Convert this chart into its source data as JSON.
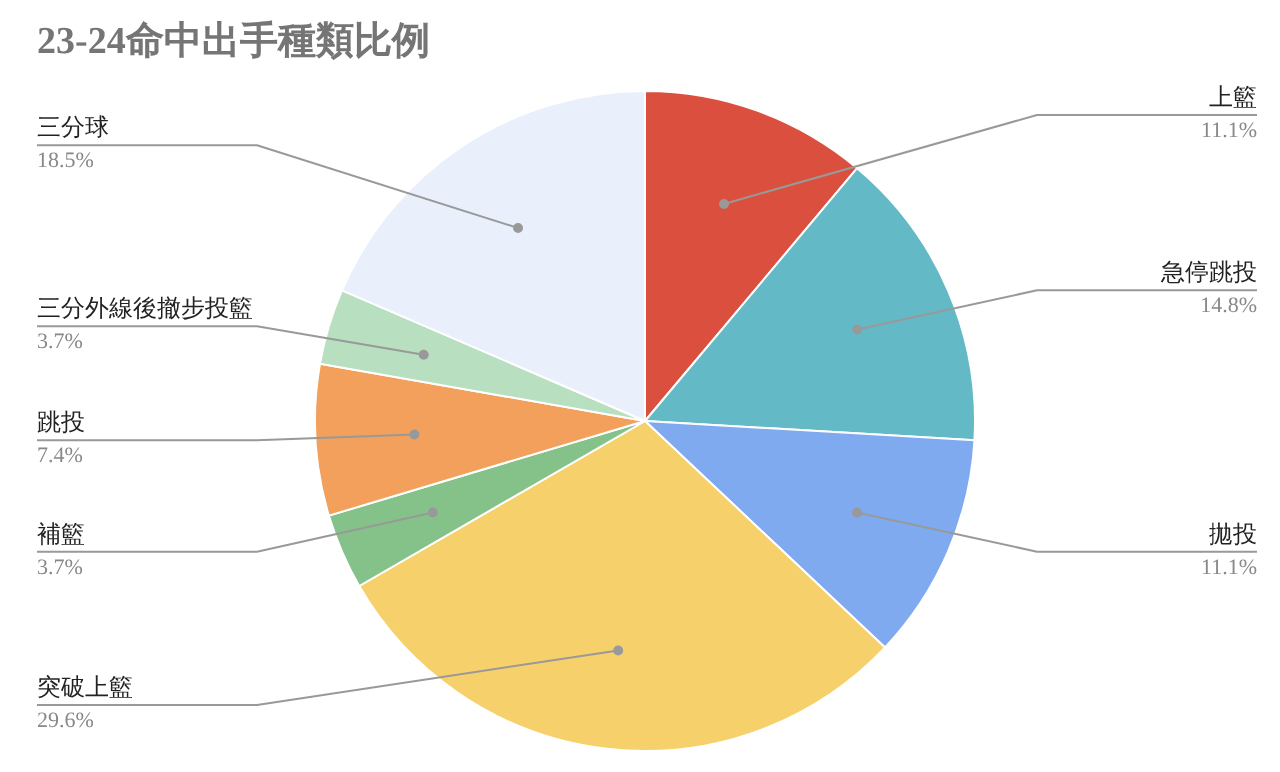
{
  "chart_data": {
    "type": "pie",
    "title": "23-24命中出手種類比例",
    "categories": [
      "上籃",
      "急停跳投",
      "拋投",
      "突破上籃",
      "補籃",
      "跳投",
      "三分外線後撤步投籃",
      "三分球"
    ],
    "values": [
      11.1,
      14.8,
      11.1,
      29.6,
      3.7,
      7.4,
      3.7,
      18.5
    ],
    "value_labels": [
      "11.1%",
      "14.8%",
      "11.1%",
      "29.6%",
      "3.7%",
      "7.4%",
      "3.7%",
      "18.5%"
    ],
    "colors": [
      "#db4f3f",
      "#63bac6",
      "#7faaf0",
      "#f6d06a",
      "#84c28a",
      "#f2a05c",
      "#b7dfc0",
      "#eaf0fb"
    ]
  }
}
